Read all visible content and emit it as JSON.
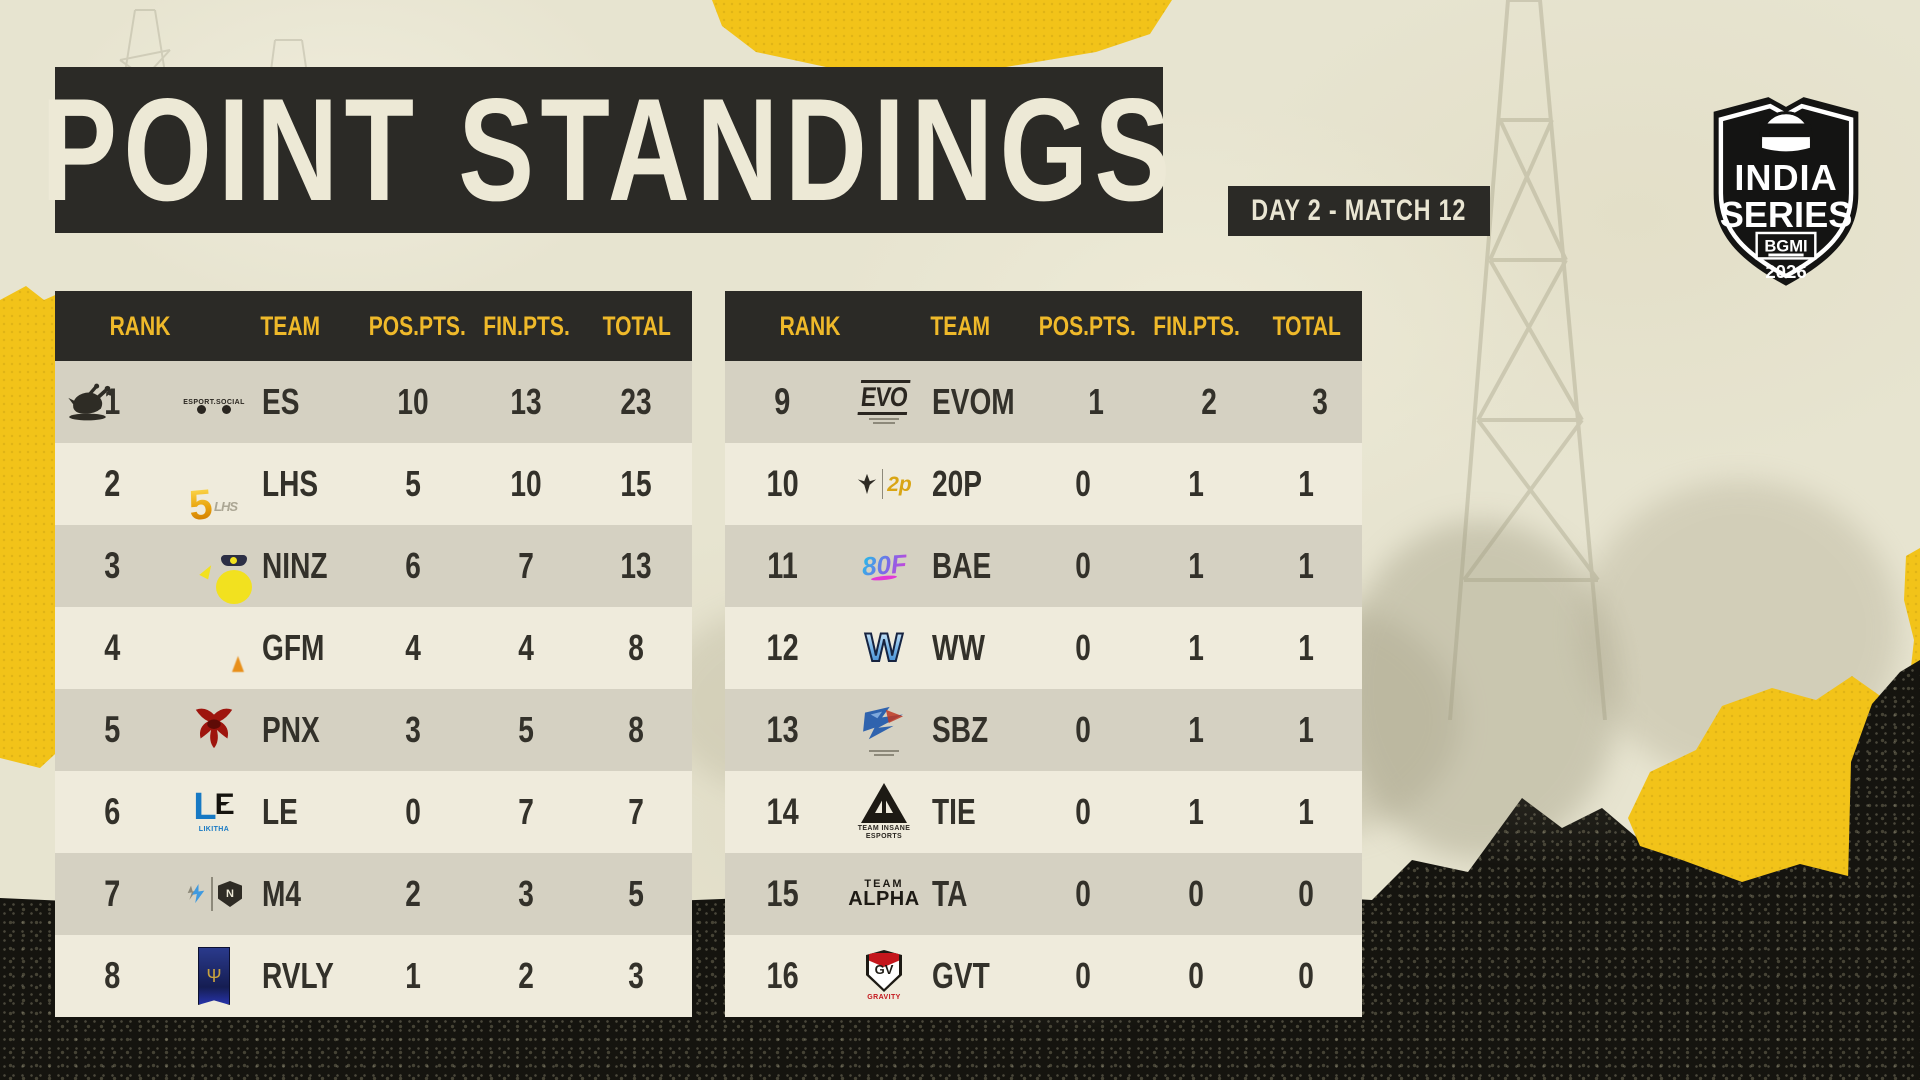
{
  "title": "POINT STANDINGS",
  "match_badge": "DAY 2 - MATCH 12",
  "event_logo": {
    "line1": "INDIA",
    "line2": "SERIES",
    "badge": "BGMI",
    "year": "2026"
  },
  "columns": [
    "RANK",
    "TEAM",
    "POS.PTS.",
    "FIN.PTS.",
    "TOTAL"
  ],
  "colors": {
    "accent_yellow": "#F2C319",
    "panel_dark": "#2B2A26",
    "header_text_yellow": "#EFB92A",
    "row_dark": "#D5D1C2",
    "row_light": "#EFEBDC",
    "text_dark": "#33312A",
    "paper": "#E7E4D0"
  },
  "left_table": {
    "rows": [
      {
        "rank": "1",
        "team": "ES",
        "pos": "10",
        "fin": "13",
        "total": "23",
        "logo": "es",
        "logo_caption": "ESPORT.SOCIAL",
        "winner": true
      },
      {
        "rank": "2",
        "team": "LHS",
        "pos": "5",
        "fin": "10",
        "total": "15",
        "logo": "lhs",
        "logo_text": "5"
      },
      {
        "rank": "3",
        "team": "NINZ",
        "pos": "6",
        "fin": "7",
        "total": "13",
        "logo": "ninz"
      },
      {
        "rank": "4",
        "team": "GFM",
        "pos": "4",
        "fin": "4",
        "total": "8",
        "logo": "gfm"
      },
      {
        "rank": "5",
        "team": "PNX",
        "pos": "3",
        "fin": "5",
        "total": "8",
        "logo": "pnx"
      },
      {
        "rank": "6",
        "team": "LE",
        "pos": "0",
        "fin": "7",
        "total": "7",
        "logo": "le",
        "logo_text": "LE",
        "logo_caption": "LIKITHA"
      },
      {
        "rank": "7",
        "team": "M4",
        "pos": "2",
        "fin": "3",
        "total": "5",
        "logo": "m4",
        "logo_text": "N"
      },
      {
        "rank": "8",
        "team": "RVLY",
        "pos": "1",
        "fin": "2",
        "total": "3",
        "logo": "rvly"
      }
    ]
  },
  "right_table": {
    "rows": [
      {
        "rank": "9",
        "team": "EVOM",
        "pos": "1",
        "fin": "2",
        "total": "3",
        "logo": "evom",
        "logo_text": "EVO"
      },
      {
        "rank": "10",
        "team": "20P",
        "pos": "0",
        "fin": "1",
        "total": "1",
        "logo": "20p",
        "logo_text": "2p"
      },
      {
        "rank": "11",
        "team": "BAE",
        "pos": "0",
        "fin": "1",
        "total": "1",
        "logo": "bae",
        "logo_text": "80F"
      },
      {
        "rank": "12",
        "team": "WW",
        "pos": "0",
        "fin": "1",
        "total": "1",
        "logo": "ww",
        "logo_text": "W"
      },
      {
        "rank": "13",
        "team": "SBZ",
        "pos": "0",
        "fin": "1",
        "total": "1",
        "logo": "sbz"
      },
      {
        "rank": "14",
        "team": "TIE",
        "pos": "0",
        "fin": "1",
        "total": "1",
        "logo": "tie",
        "logo_caption": "TEAM INSANE ESPORTS"
      },
      {
        "rank": "15",
        "team": "TA",
        "pos": "0",
        "fin": "0",
        "total": "0",
        "logo": "ta",
        "logo_text": "TEAM ALPHA"
      },
      {
        "rank": "16",
        "team": "GVT",
        "pos": "0",
        "fin": "0",
        "total": "0",
        "logo": "gvt",
        "logo_text": "GV",
        "logo_caption": "GRAVITY"
      }
    ]
  }
}
